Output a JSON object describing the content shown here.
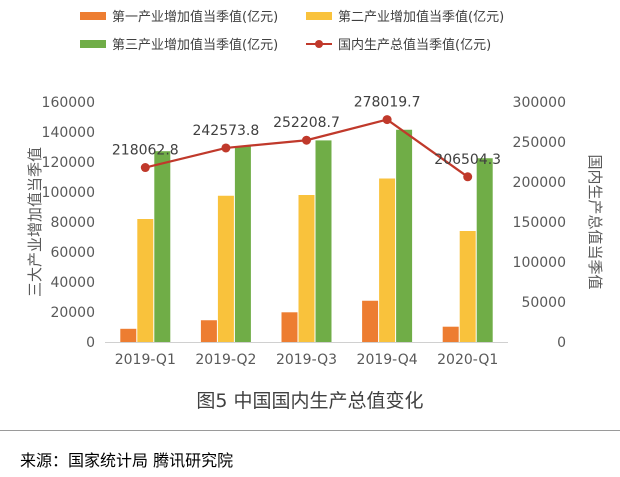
{
  "caption": "图5 中国国内生产总值变化",
  "source": "来源：国家统计局 腾讯研究院",
  "chart_data": {
    "type": "bar",
    "categories": [
      "2019-Q1",
      "2019-Q2",
      "2019-Q3",
      "2019-Q4",
      "2020-Q1"
    ],
    "series": [
      {
        "name": "第一产业增加值当季值(亿元)",
        "type": "bar",
        "axis": "left",
        "color": "#ED7D31",
        "values": [
          8800,
          14500,
          19800,
          27500,
          10200
        ]
      },
      {
        "name": "第二产业增加值当季值(亿元)",
        "type": "bar",
        "axis": "left",
        "color": "#F9C23C",
        "values": [
          82000,
          97500,
          98000,
          109000,
          74000
        ]
      },
      {
        "name": "第三产业增加值当季值(亿元)",
        "type": "bar",
        "axis": "left",
        "color": "#70AD47",
        "values": [
          127200,
          130600,
          134400,
          141500,
          122500
        ]
      },
      {
        "name": "国内生产总值当季值(亿元)",
        "type": "line",
        "axis": "right",
        "color": "#C0392B",
        "values": [
          218062.8,
          242573.8,
          252208.7,
          278019.7,
          206504.3
        ],
        "labels": [
          "218062.8",
          "242573.8",
          "252208.7",
          "278019.7",
          "206504.3"
        ]
      }
    ],
    "ylabel": "三大产业增加值当季值",
    "y2label": "国内生产总值当季值",
    "ylim": [
      0,
      160000
    ],
    "y2lim": [
      0,
      300000
    ],
    "yticks": [
      "0",
      "20000",
      "40000",
      "60000",
      "80000",
      "100000",
      "120000",
      "140000",
      "160000"
    ],
    "y2ticks": [
      "0",
      "50000",
      "100000",
      "150000",
      "200000",
      "250000",
      "300000"
    ],
    "grid": false,
    "legend_position": "top"
  }
}
